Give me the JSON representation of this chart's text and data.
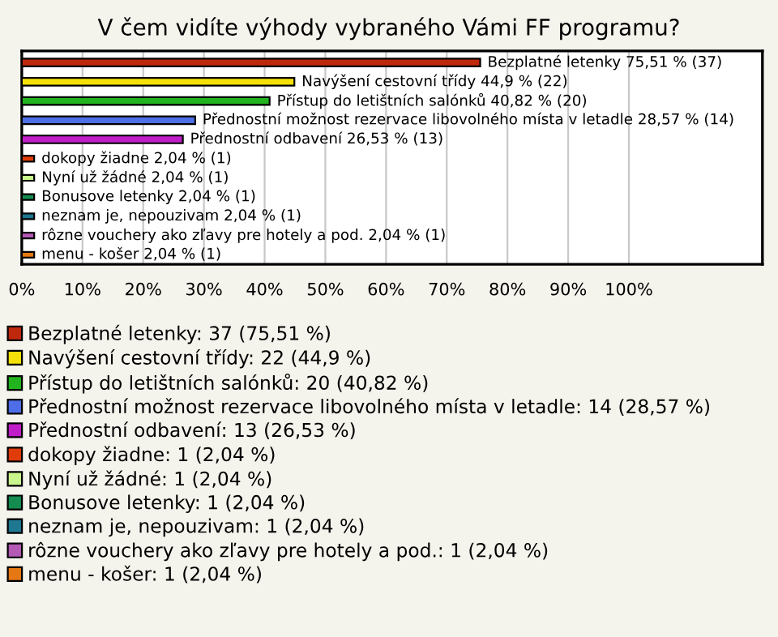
{
  "chart_data": {
    "type": "bar",
    "orientation": "horizontal",
    "title": "V čem vidíte výhody vybraného Vámi FF programu?",
    "categories": [
      null,
      null,
      null,
      null,
      null,
      null,
      null,
      null,
      null,
      null,
      null
    ],
    "series": [
      {
        "name": "Bezplatné letenky: 37 (75,51 %)",
        "color": "#c0280e",
        "values": [
          75.51,
          null,
          null,
          null,
          null,
          null,
          null,
          null,
          null,
          null,
          null
        ],
        "value_labels": [
          "Bezplatné letenky 75,51 % (37)",
          null,
          null,
          null,
          null,
          null,
          null,
          null,
          null,
          null,
          null
        ]
      },
      {
        "name": "Navýšení cestovní třídy: 22 (44,9 %)",
        "color": "#f5e10a",
        "values": [
          null,
          44.9,
          null,
          null,
          null,
          null,
          null,
          null,
          null,
          null,
          null
        ],
        "value_labels": [
          null,
          "Navýšení cestovní třídy 44,9 % (22)",
          null,
          null,
          null,
          null,
          null,
          null,
          null,
          null,
          null
        ]
      },
      {
        "name": "Přístup do letištních salónků: 20 (40,82 %)",
        "color": "#22b41e",
        "values": [
          null,
          null,
          40.82,
          null,
          null,
          null,
          null,
          null,
          null,
          null,
          null
        ],
        "value_labels": [
          null,
          null,
          "Přístup do letištních salónků 40,82 % (20)",
          null,
          null,
          null,
          null,
          null,
          null,
          null,
          null
        ]
      },
      {
        "name": "Přednostní možnost rezervace libovolného místa v letadle: 14 (28,57 %)",
        "color": "#4d6ee6",
        "values": [
          null,
          null,
          null,
          28.57,
          null,
          null,
          null,
          null,
          null,
          null,
          null
        ],
        "value_labels": [
          null,
          null,
          null,
          "Přednostní možnost rezervace libovolného místa v letadle 28,57 % (14)",
          null,
          null,
          null,
          null,
          null,
          null,
          null
        ]
      },
      {
        "name": "Přednostní odbavení: 13 (26,53 %)",
        "color": "#c01ec8",
        "values": [
          null,
          null,
          null,
          null,
          26.53,
          null,
          null,
          null,
          null,
          null,
          null
        ],
        "value_labels": [
          null,
          null,
          null,
          null,
          "Přednostní odbavení 26,53 % (13)",
          null,
          null,
          null,
          null,
          null,
          null
        ]
      },
      {
        "name": "dokopy žiadne: 1 (2,04 %)",
        "color": "#e03c0a",
        "values": [
          null,
          null,
          null,
          null,
          null,
          2.04,
          null,
          null,
          null,
          null,
          null
        ],
        "value_labels": [
          null,
          null,
          null,
          null,
          null,
          "dokopy žiadne 2,04 % (1)",
          null,
          null,
          null,
          null,
          null
        ]
      },
      {
        "name": "Nyní už žádné: 1 (2,04 %)",
        "color": "#c8f58c",
        "values": [
          null,
          null,
          null,
          null,
          null,
          null,
          2.04,
          null,
          null,
          null,
          null
        ],
        "value_labels": [
          null,
          null,
          null,
          null,
          null,
          null,
          "Nyní už žádné 2,04 % (1)",
          null,
          null,
          null,
          null
        ]
      },
      {
        "name": "Bonusove letenky: 1 (2,04 %)",
        "color": "#148c50",
        "values": [
          null,
          null,
          null,
          null,
          null,
          null,
          null,
          2.04,
          null,
          null,
          null
        ],
        "value_labels": [
          null,
          null,
          null,
          null,
          null,
          null,
          null,
          "Bonusove letenky 2,04 % (1)",
          null,
          null,
          null
        ]
      },
      {
        "name": "neznam je, nepouzivam: 1 (2,04 %)",
        "color": "#1e7891",
        "values": [
          null,
          null,
          null,
          null,
          null,
          null,
          null,
          null,
          2.04,
          null,
          null
        ],
        "value_labels": [
          null,
          null,
          null,
          null,
          null,
          null,
          null,
          null,
          "neznam je, nepouzivam 2,04 % (1)",
          null,
          null
        ]
      },
      {
        "name": "rôzne vouchery ako zľavy pre hotely a pod.: 1 (2,04 %)",
        "color": "#b45ab4",
        "values": [
          null,
          null,
          null,
          null,
          null,
          null,
          null,
          null,
          null,
          2.04,
          null
        ],
        "value_labels": [
          null,
          null,
          null,
          null,
          null,
          null,
          null,
          null,
          null,
          "rôzne vouchery ako zľavy pre hotely a pod. 2,04 % (1)",
          null
        ]
      },
      {
        "name": "menu - košer: 1 (2,04 %)",
        "color": "#e67814",
        "values": [
          null,
          null,
          null,
          null,
          null,
          null,
          null,
          null,
          null,
          null,
          2.04
        ],
        "value_labels": [
          null,
          null,
          null,
          null,
          null,
          null,
          null,
          null,
          null,
          null,
          "menu - košer 2,04 % (1)"
        ]
      }
    ],
    "xlim": [
      0,
      122
    ],
    "xticks": [
      {
        "value": 0,
        "label": "0%"
      },
      {
        "value": 10,
        "label": "10%"
      },
      {
        "value": 20,
        "label": "20%"
      },
      {
        "value": 30,
        "label": "30%"
      },
      {
        "value": 40,
        "label": "40%"
      },
      {
        "value": 50,
        "label": "50%"
      },
      {
        "value": 60,
        "label": "60%"
      },
      {
        "value": 70,
        "label": "70%"
      },
      {
        "value": 80,
        "label": "80%"
      },
      {
        "value": 90,
        "label": "90%"
      },
      {
        "value": 100,
        "label": "100%"
      }
    ],
    "grid": "x",
    "legend": "bottom",
    "tick_labels": "x"
  }
}
